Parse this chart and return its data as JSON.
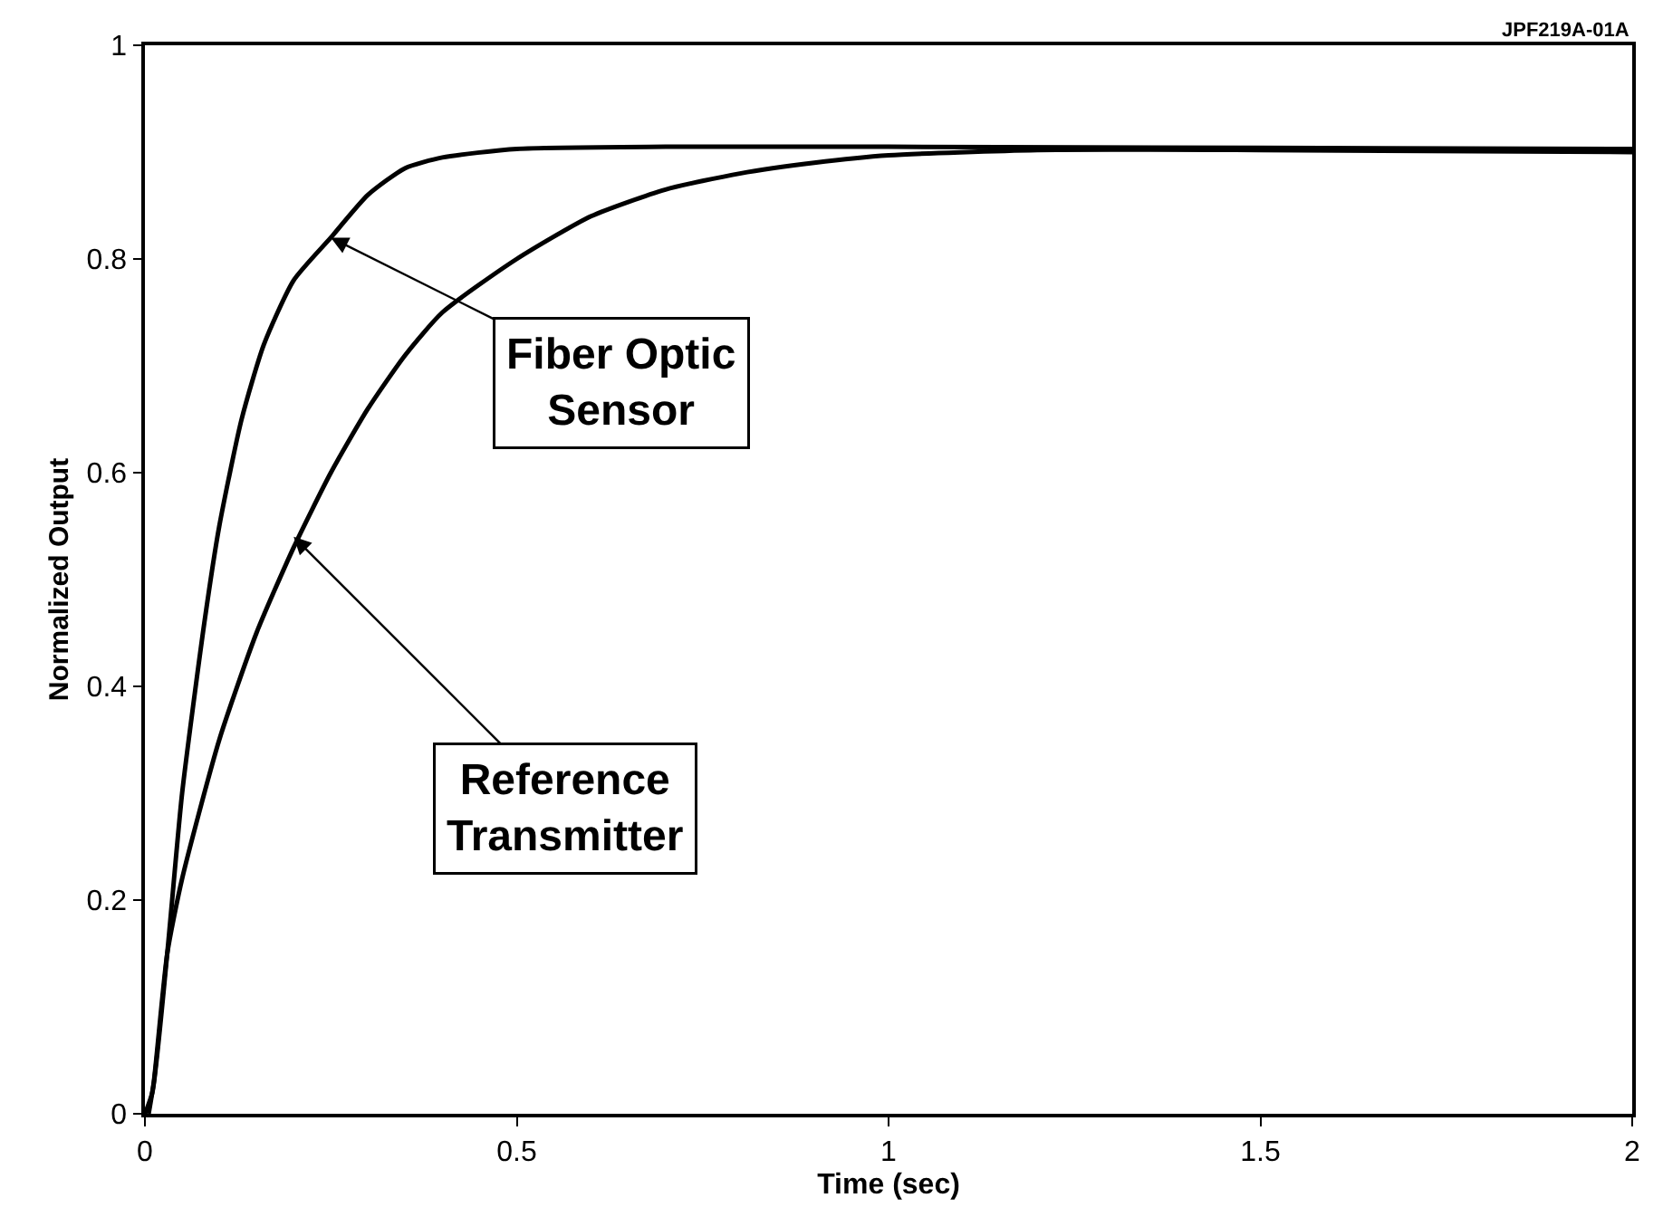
{
  "chart_data": {
    "type": "line",
    "xlabel": "Time (sec)",
    "ylabel": "Normalized Output",
    "xlim": [
      0,
      2
    ],
    "ylim": [
      0,
      1
    ],
    "xticks": [
      0,
      0.5,
      1,
      1.5,
      2
    ],
    "yticks": [
      0,
      0.2,
      0.4,
      0.6,
      0.8,
      1
    ],
    "marker": "none",
    "line_style": "solid",
    "series": [
      {
        "color": "#000000",
        "x": [
          0,
          0.01,
          0.03,
          0.05,
          0.08,
          0.1,
          0.13,
          0.16,
          0.2,
          0.25,
          0.3,
          0.35,
          0.4,
          0.5,
          0.7,
          1,
          1.5,
          2
        ],
        "values": [
          0,
          0.02,
          0.15,
          0.3,
          0.46,
          0.55,
          0.65,
          0.72,
          0.78,
          0.82,
          0.86,
          0.885,
          0.895,
          0.903,
          0.905,
          0.905,
          0.904,
          0.903
        ]
      },
      {
        "color": "#000000",
        "x": [
          0.005,
          0.012,
          0.03,
          0.05,
          0.1,
          0.15,
          0.2,
          0.25,
          0.3,
          0.35,
          0.4,
          0.5,
          0.6,
          0.7,
          0.8,
          0.9,
          1,
          1.2,
          1.5,
          2
        ],
        "values": [
          0,
          0.03,
          0.15,
          0.22,
          0.35,
          0.45,
          0.53,
          0.6,
          0.66,
          0.71,
          0.75,
          0.8,
          0.84,
          0.865,
          0.88,
          0.89,
          0.897,
          0.902,
          0.902,
          0.9
        ]
      }
    ],
    "annotations": [
      {
        "text": "Fiber Optic\nSensor",
        "x": 0.25,
        "y": 0.82
      },
      {
        "text": "Reference\nTransmitter",
        "x": 0.2,
        "y": 0.54
      },
      "JPF219A-01A"
    ]
  }
}
